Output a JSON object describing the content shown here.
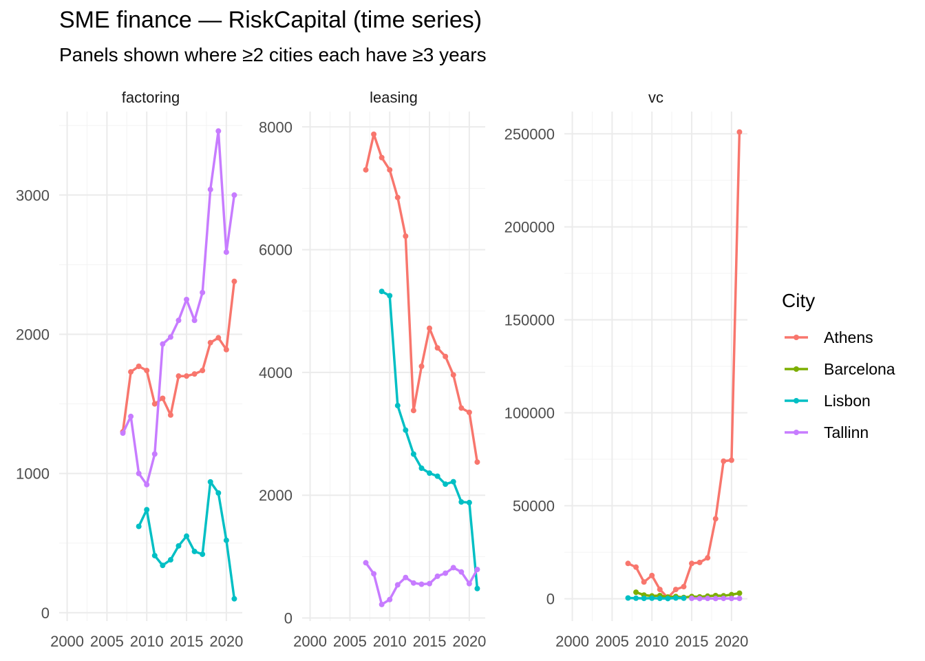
{
  "chart_data": {
    "type": "line",
    "title": "SME finance — RiskCapital (time series)",
    "subtitle": "Panels shown where ≥2 cities each have ≥3 years",
    "xlabel": "",
    "ylabel": "",
    "grid": true,
    "legend": {
      "title": "City",
      "placement": "right",
      "entries": [
        "Athens",
        "Barcelona",
        "Lisbon",
        "Tallinn"
      ]
    },
    "colors": {
      "Athens": "#F8766D",
      "Barcelona": "#7CAE00",
      "Lisbon": "#00BFC4",
      "Tallinn": "#C77CFF"
    },
    "panels": [
      {
        "name": "factoring",
        "xlim": [
          1999,
          2022
        ],
        "ylim": [
          -60,
          3600
        ],
        "xticks": [
          2000,
          2005,
          2010,
          2015,
          2020
        ],
        "xtick_labels": [
          "2000",
          "2005",
          "2010",
          "2015",
          "2020"
        ],
        "yticks": [
          0,
          1000,
          2000,
          3000
        ],
        "ytick_labels": [
          "0",
          "1000",
          "2000",
          "3000"
        ],
        "series": [
          {
            "name": "Athens",
            "x": [
              2007,
              2008,
              2009,
              2010,
              2011,
              2012,
              2013,
              2014,
              2015,
              2016,
              2017,
              2018,
              2019,
              2020,
              2021
            ],
            "values": [
              1300,
              1730,
              1770,
              1740,
              1500,
              1540,
              1420,
              1700,
              1700,
              1715,
              1740,
              1940,
              1975,
              1890,
              2380
            ]
          },
          {
            "name": "Lisbon",
            "x": [
              2009,
              2010,
              2011,
              2012,
              2013,
              2014,
              2015,
              2016,
              2017,
              2018,
              2019,
              2020,
              2021
            ],
            "values": [
              620,
              740,
              410,
              340,
              380,
              480,
              550,
              440,
              420,
              940,
              860,
              520,
              100
            ]
          },
          {
            "name": "Tallinn",
            "x": [
              2007,
              2008,
              2009,
              2010,
              2011,
              2012,
              2013,
              2014,
              2015,
              2016,
              2017,
              2018,
              2019,
              2020,
              2021
            ],
            "values": [
              1290,
              1410,
              1000,
              920,
              1140,
              1930,
              1980,
              2100,
              2250,
              2100,
              2300,
              3040,
              3460,
              2590,
              3000
            ]
          }
        ]
      },
      {
        "name": "leasing",
        "xlim": [
          1999,
          2022
        ],
        "ylim": [
          -50,
          8250
        ],
        "xticks": [
          2000,
          2005,
          2010,
          2015,
          2020
        ],
        "xtick_labels": [
          "2000",
          "2005",
          "2010",
          "2015",
          "2020"
        ],
        "yticks": [
          0,
          2000,
          4000,
          6000,
          8000
        ],
        "ytick_labels": [
          "0",
          "2000",
          "4000",
          "6000",
          "8000"
        ],
        "series": [
          {
            "name": "Athens",
            "x": [
              2007,
              2008,
              2009,
              2010,
              2011,
              2012,
              2013,
              2014,
              2015,
              2016,
              2017,
              2018,
              2019,
              2020,
              2021
            ],
            "values": [
              7300,
              7880,
              7500,
              7300,
              6850,
              6220,
              3380,
              4100,
              4720,
              4400,
              4260,
              3960,
              3420,
              3350,
              2540
            ]
          },
          {
            "name": "Lisbon",
            "x": [
              2009,
              2010,
              2011,
              2012,
              2013,
              2014,
              2015,
              2016,
              2017,
              2018,
              2019,
              2020,
              2021
            ],
            "values": [
              5320,
              5250,
              3460,
              3060,
              2670,
              2440,
              2360,
              2310,
              2180,
              2220,
              1890,
              1880,
              480
            ]
          },
          {
            "name": "Tallinn",
            "x": [
              2007,
              2008,
              2009,
              2010,
              2011,
              2012,
              2013,
              2014,
              2015,
              2016,
              2017,
              2018,
              2019,
              2020,
              2021
            ],
            "values": [
              900,
              720,
              220,
              300,
              540,
              660,
              570,
              550,
              560,
              680,
              730,
              820,
              750,
              560,
              790
            ]
          }
        ]
      },
      {
        "name": "vc",
        "xlim": [
          1999,
          2022
        ],
        "ylim": [
          -12000,
          262000
        ],
        "xticks": [
          2000,
          2005,
          2010,
          2015,
          2020
        ],
        "xtick_labels": [
          "2000",
          "2005",
          "2010",
          "2015",
          "2020"
        ],
        "yticks": [
          0,
          50000,
          100000,
          150000,
          200000,
          250000
        ],
        "ytick_labels": [
          "0",
          "50000",
          "100000",
          "150000",
          "200000",
          "250000"
        ],
        "series": [
          {
            "name": "Athens",
            "x": [
              2007,
              2008,
              2009,
              2010,
              2011,
              2012,
              2013,
              2014,
              2015,
              2016,
              2017,
              2018,
              2019,
              2020,
              2021
            ],
            "values": [
              19000,
              17000,
              9000,
              12500,
              5000,
              500,
              5000,
              6500,
              19000,
              19500,
              22000,
              43000,
              74000,
              74500,
              251000
            ]
          },
          {
            "name": "Barcelona",
            "x": [
              2008,
              2009,
              2010,
              2011,
              2012,
              2013,
              2014,
              2015,
              2016,
              2017,
              2018,
              2019,
              2020,
              2021
            ],
            "values": [
              3500,
              2000,
              1500,
              1700,
              900,
              1200,
              700,
              1200,
              1000,
              1400,
              1700,
              1600,
              2200,
              3000
            ]
          },
          {
            "name": "Lisbon",
            "x": [
              2007,
              2008,
              2009,
              2010,
              2011,
              2012,
              2013,
              2014
            ],
            "values": [
              400,
              300,
              200,
              300,
              200,
              100,
              400,
              300
            ]
          },
          {
            "name": "Tallinn",
            "x": [
              2015,
              2016,
              2017,
              2018,
              2019,
              2020,
              2021
            ],
            "values": [
              200,
              100,
              150,
              120,
              180,
              150,
              160
            ]
          }
        ]
      }
    ]
  }
}
